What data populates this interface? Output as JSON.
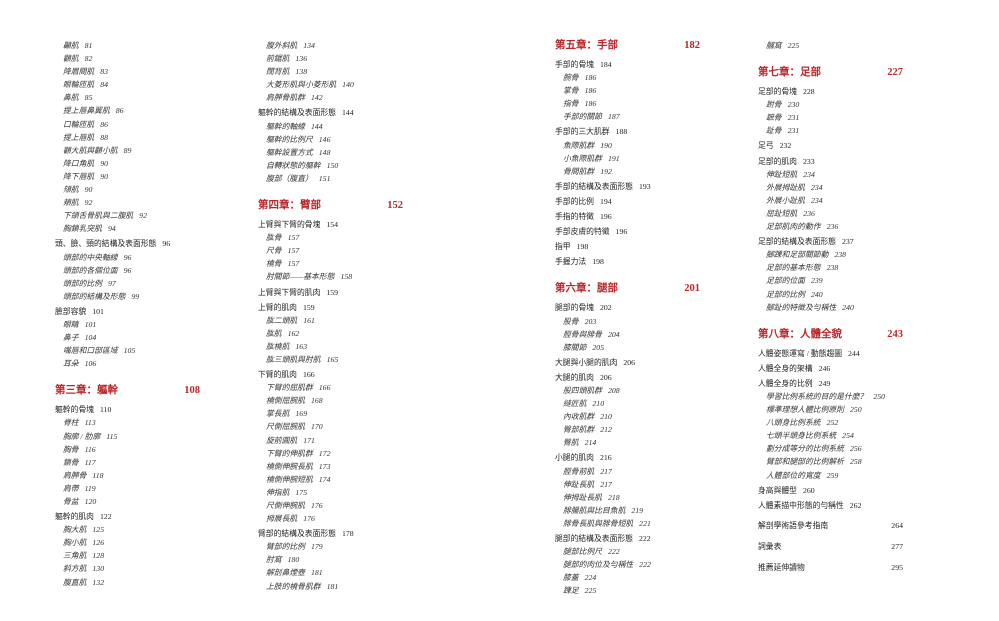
{
  "columns": [
    {
      "entries": [
        {
          "text": "顳肌",
          "page": 81,
          "style": "sub"
        },
        {
          "text": "顴肌",
          "page": 82,
          "style": "sub"
        },
        {
          "text": "降眉間肌",
          "page": 83,
          "style": "sub"
        },
        {
          "text": "眼輪匝肌",
          "page": 84,
          "style": "sub"
        },
        {
          "text": "鼻肌",
          "page": 85,
          "style": "sub"
        },
        {
          "text": "提上唇鼻翼肌",
          "page": 86,
          "style": "sub"
        },
        {
          "text": "口輪匝肌",
          "page": 86,
          "style": "sub"
        },
        {
          "text": "提上唇肌",
          "page": 88,
          "style": "sub"
        },
        {
          "text": "顴大肌與顴小肌",
          "page": 89,
          "style": "sub"
        },
        {
          "text": "降口角肌",
          "page": 90,
          "style": "sub"
        },
        {
          "text": "降下唇肌",
          "page": 90,
          "style": "sub"
        },
        {
          "text": "頦肌",
          "page": 90,
          "style": "sub"
        },
        {
          "text": "頰肌",
          "page": 92,
          "style": "sub"
        },
        {
          "text": "下頜舌骨肌與二腹肌",
          "page": 92,
          "style": "sub"
        },
        {
          "text": "胸鎖乳突肌",
          "page": 94,
          "style": "sub"
        },
        {
          "text": "頭、臉、頸的結構及表面形態",
          "page": 96,
          "style": "entry"
        },
        {
          "text": "頭部的中央軸線",
          "page": 96,
          "style": "sub"
        },
        {
          "text": "頭部的各個位面",
          "page": 96,
          "style": "sub"
        },
        {
          "text": "頭部的比例",
          "page": 97,
          "style": "sub"
        },
        {
          "text": "頭部的結構及形態",
          "page": 99,
          "style": "sub"
        },
        {
          "text": "臉部容貌",
          "page": 101,
          "style": "entry"
        },
        {
          "text": "眼睛",
          "page": 101,
          "style": "sub"
        },
        {
          "text": "鼻子",
          "page": 104,
          "style": "sub"
        },
        {
          "text": "嘴唇和口部區域",
          "page": 105,
          "style": "sub"
        },
        {
          "text": "耳朵",
          "page": 106,
          "style": "sub"
        },
        {
          "text": "第三章：軀幹",
          "page": 108,
          "style": "chapter"
        },
        {
          "text": "軀幹的骨塊",
          "page": 110,
          "style": "entry"
        },
        {
          "text": "脊柱",
          "page": 113,
          "style": "sub"
        },
        {
          "text": "胸廓 / 肋廓",
          "page": 115,
          "style": "sub"
        },
        {
          "text": "胸骨",
          "page": 116,
          "style": "sub"
        },
        {
          "text": "鎖骨",
          "page": 117,
          "style": "sub"
        },
        {
          "text": "肩胛骨",
          "page": 118,
          "style": "sub"
        },
        {
          "text": "肩帶",
          "page": 119,
          "style": "sub"
        },
        {
          "text": "骨盆",
          "page": 120,
          "style": "sub"
        },
        {
          "text": "軀幹的肌肉",
          "page": 122,
          "style": "entry"
        },
        {
          "text": "胸大肌",
          "page": 125,
          "style": "sub"
        },
        {
          "text": "胸小肌",
          "page": 126,
          "style": "sub"
        },
        {
          "text": "三角肌",
          "page": 128,
          "style": "sub"
        },
        {
          "text": "斜方肌",
          "page": 130,
          "style": "sub"
        },
        {
          "text": "腹直肌",
          "page": 132,
          "style": "sub"
        }
      ]
    },
    {
      "entries": [
        {
          "text": "腹外斜肌",
          "page": 134,
          "style": "sub"
        },
        {
          "text": "前鋸肌",
          "page": 136,
          "style": "sub"
        },
        {
          "text": "闊背肌",
          "page": 138,
          "style": "sub"
        },
        {
          "text": "大菱形肌與小菱形肌",
          "page": 140,
          "style": "sub"
        },
        {
          "text": "肩胛骨肌群",
          "page": 142,
          "style": "sub"
        },
        {
          "text": "軀幹的結構及表面形態",
          "page": 144,
          "style": "entry"
        },
        {
          "text": "軀幹的軸線",
          "page": 144,
          "style": "sub"
        },
        {
          "text": "軀幹的比例尺",
          "page": 146,
          "style": "sub"
        },
        {
          "text": "軀幹設置方式",
          "page": 148,
          "style": "sub"
        },
        {
          "text": "自轉狀態的軀幹",
          "page": 150,
          "style": "sub"
        },
        {
          "text": "腹部（腹直）",
          "page": 151,
          "style": "sub"
        },
        {
          "text": "第四章：臂部",
          "page": 152,
          "style": "chapter"
        },
        {
          "text": "上臂與下臂的骨塊",
          "page": 154,
          "style": "entry"
        },
        {
          "text": "肱骨",
          "page": 157,
          "style": "sub"
        },
        {
          "text": "尺骨",
          "page": 157,
          "style": "sub"
        },
        {
          "text": "橈骨",
          "page": 157,
          "style": "sub"
        },
        {
          "text": "肘關節——基本形態",
          "page": 158,
          "style": "sub"
        },
        {
          "text": "上臂與下臂的肌肉",
          "page": 159,
          "style": "entry"
        },
        {
          "text": "上臂的肌肉",
          "page": 159,
          "style": "entry"
        },
        {
          "text": "肱二頭肌",
          "page": 161,
          "style": "sub"
        },
        {
          "text": "肱肌",
          "page": 162,
          "style": "sub"
        },
        {
          "text": "肱橈肌",
          "page": 163,
          "style": "sub"
        },
        {
          "text": "肱三頭肌與肘肌",
          "page": 165,
          "style": "sub"
        },
        {
          "text": "下臂的肌肉",
          "page": 166,
          "style": "entry"
        },
        {
          "text": "下臂的屈肌群",
          "page": 166,
          "style": "sub"
        },
        {
          "text": "橈側屈腕肌",
          "page": 168,
          "style": "sub"
        },
        {
          "text": "掌長肌",
          "page": 169,
          "style": "sub"
        },
        {
          "text": "尺側屈腕肌",
          "page": 170,
          "style": "sub"
        },
        {
          "text": "旋前圓肌",
          "page": 171,
          "style": "sub"
        },
        {
          "text": "下臂的伸肌群",
          "page": 172,
          "style": "sub"
        },
        {
          "text": "橈側伸腕長肌",
          "page": 173,
          "style": "sub"
        },
        {
          "text": "橈側伸腕短肌",
          "page": 174,
          "style": "sub"
        },
        {
          "text": "伸指肌",
          "page": 175,
          "style": "sub"
        },
        {
          "text": "尺側伸腕肌",
          "page": 176,
          "style": "sub"
        },
        {
          "text": "拇展長肌",
          "page": 176,
          "style": "sub"
        },
        {
          "text": "臂部的結構及表面形態",
          "page": 178,
          "style": "entry"
        },
        {
          "text": "臂部的比例",
          "page": 179,
          "style": "sub"
        },
        {
          "text": "肘窩",
          "page": 180,
          "style": "sub"
        },
        {
          "text": "解剖鼻煙壺",
          "page": 181,
          "style": "sub"
        },
        {
          "text": "上肢的橈骨肌群",
          "page": 181,
          "style": "sub"
        }
      ]
    },
    {
      "entries": [
        {
          "text": "第五章：手部",
          "page": 182,
          "style": "chapter"
        },
        {
          "text": "手部的骨塊",
          "page": 184,
          "style": "entry"
        },
        {
          "text": "腕骨",
          "page": 186,
          "style": "sub"
        },
        {
          "text": "掌骨",
          "page": 186,
          "style": "sub"
        },
        {
          "text": "指骨",
          "page": 186,
          "style": "sub"
        },
        {
          "text": "手部的關節",
          "page": 187,
          "style": "sub"
        },
        {
          "text": "手部的三大肌群",
          "page": 188,
          "style": "entry"
        },
        {
          "text": "魚際肌群",
          "page": 190,
          "style": "sub"
        },
        {
          "text": "小魚際肌群",
          "page": 191,
          "style": "sub"
        },
        {
          "text": "骨間肌群",
          "page": 192,
          "style": "sub"
        },
        {
          "text": "手部的結構及表面形態",
          "page": 193,
          "style": "entry"
        },
        {
          "text": "手部的比例",
          "page": 194,
          "style": "entry"
        },
        {
          "text": "手指的特徵",
          "page": 196,
          "style": "entry"
        },
        {
          "text": "手部皮膚的特徵",
          "page": 196,
          "style": "entry"
        },
        {
          "text": "指甲",
          "page": 198,
          "style": "entry"
        },
        {
          "text": "手握力法",
          "page": 198,
          "style": "entry"
        },
        {
          "text": "第六章：腿部",
          "page": 201,
          "style": "chapter"
        },
        {
          "text": "腿部的骨塊",
          "page": 202,
          "style": "entry"
        },
        {
          "text": "股骨",
          "page": 203,
          "style": "sub"
        },
        {
          "text": "脛骨與腓骨",
          "page": 204,
          "style": "sub"
        },
        {
          "text": "膝關節",
          "page": 205,
          "style": "sub"
        },
        {
          "text": "大腿與小腿的肌肉",
          "page": 206,
          "style": "entry"
        },
        {
          "text": "大腿的肌肉",
          "page": 206,
          "style": "entry"
        },
        {
          "text": "股四頭肌群",
          "page": 208,
          "style": "sub"
        },
        {
          "text": "縫匠肌",
          "page": 210,
          "style": "sub"
        },
        {
          "text": "內收肌群",
          "page": 210,
          "style": "sub"
        },
        {
          "text": "臀部肌群",
          "page": 212,
          "style": "sub"
        },
        {
          "text": "臀肌",
          "page": 214,
          "style": "sub"
        },
        {
          "text": "小腿的肌肉",
          "page": 216,
          "style": "entry"
        },
        {
          "text": "脛骨前肌",
          "page": 217,
          "style": "sub"
        },
        {
          "text": "伸趾長肌",
          "page": 217,
          "style": "sub"
        },
        {
          "text": "伸拇趾長肌",
          "page": 218,
          "style": "sub"
        },
        {
          "text": "腓腸肌與比目魚肌",
          "page": 219,
          "style": "sub"
        },
        {
          "text": "腓骨長肌與腓骨短肌",
          "page": 221,
          "style": "sub"
        },
        {
          "text": "腿部的結構及表面形態",
          "page": 222,
          "style": "entry"
        },
        {
          "text": "腿部比例尺",
          "page": 222,
          "style": "sub"
        },
        {
          "text": "腿部的肉位及勻稱性",
          "page": 222,
          "style": "sub"
        },
        {
          "text": "膝蓋",
          "page": 224,
          "style": "sub"
        },
        {
          "text": "踝足",
          "page": 225,
          "style": "sub"
        }
      ]
    },
    {
      "entries": [
        {
          "text": "膕窩",
          "page": 225,
          "style": "sub"
        },
        {
          "text": "第七章：足部",
          "page": 227,
          "style": "chapter"
        },
        {
          "text": "足部的骨塊",
          "page": 228,
          "style": "entry"
        },
        {
          "text": "跗骨",
          "page": 230,
          "style": "sub"
        },
        {
          "text": "蹠骨",
          "page": 231,
          "style": "sub"
        },
        {
          "text": "趾骨",
          "page": 231,
          "style": "sub"
        },
        {
          "text": "足弓",
          "page": 232,
          "style": "entry"
        },
        {
          "text": "足部的肌肉",
          "page": 233,
          "style": "entry"
        },
        {
          "text": "伸趾短肌",
          "page": 234,
          "style": "sub"
        },
        {
          "text": "外展拇趾肌",
          "page": 234,
          "style": "sub"
        },
        {
          "text": "外展小趾肌",
          "page": 234,
          "style": "sub"
        },
        {
          "text": "屈趾短肌",
          "page": 236,
          "style": "sub"
        },
        {
          "text": "足部肌肉的動作",
          "page": 236,
          "style": "sub"
        },
        {
          "text": "足部的結構及表面形態",
          "page": 237,
          "style": "entry"
        },
        {
          "text": "腳踝和足部關節動",
          "page": 238,
          "style": "sub"
        },
        {
          "text": "足部的基本形態",
          "page": 238,
          "style": "sub"
        },
        {
          "text": "足部的位面",
          "page": 239,
          "style": "sub"
        },
        {
          "text": "足部的比例",
          "page": 240,
          "style": "sub"
        },
        {
          "text": "腳趾的特徵及勻稱性",
          "page": 240,
          "style": "sub"
        },
        {
          "text": "第八章：人體全貌",
          "page": 243,
          "style": "chapter"
        },
        {
          "text": "人體姿態運寫 / 動態趨圖",
          "page": 244,
          "style": "entry"
        },
        {
          "text": "人體全身的架構",
          "page": 246,
          "style": "entry"
        },
        {
          "text": "人體全身的比例",
          "page": 249,
          "style": "entry"
        },
        {
          "text": "學習比例系統的目的是什麼？",
          "page": 250,
          "style": "sub"
        },
        {
          "text": "標準理想人體比例原則",
          "page": 250,
          "style": "sub"
        },
        {
          "text": "八頭身比例系統",
          "page": 252,
          "style": "sub"
        },
        {
          "text": "七頭半頭身比例系統",
          "page": 254,
          "style": "sub"
        },
        {
          "text": "劃分成等分的比例系統",
          "page": 256,
          "style": "sub"
        },
        {
          "text": "臂部和腿部的比例解析",
          "page": 258,
          "style": "sub"
        },
        {
          "text": "人體部位的寬度",
          "page": 259,
          "style": "sub"
        },
        {
          "text": "身高與體型",
          "page": 260,
          "style": "entry"
        },
        {
          "text": "人體素描中形態的勻稱性",
          "page": 262,
          "style": "entry"
        },
        {
          "text": "解剖學術語參考指南",
          "page": 264,
          "style": "back"
        },
        {
          "text": "詞彙表",
          "page": 277,
          "style": "back"
        },
        {
          "text": "推薦延伸讀物",
          "page": 295,
          "style": "back"
        }
      ]
    }
  ]
}
